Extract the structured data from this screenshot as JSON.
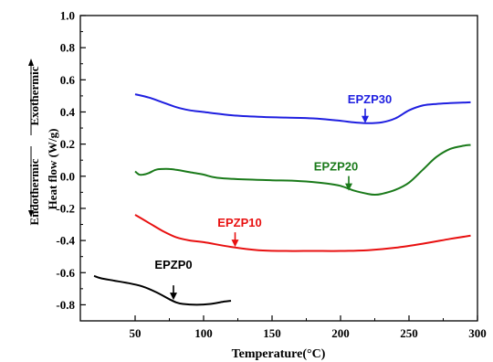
{
  "chart_data": {
    "type": "line",
    "title": "",
    "xlabel": "Temperature(°C)",
    "ylabel": "Heat flow (W/g)",
    "ylabel_exo": "Exothermic",
    "ylabel_endo": "Endothermic",
    "xlim": [
      10,
      300
    ],
    "ylim": [
      -0.9,
      1.0
    ],
    "xticks": [
      "50",
      "100",
      "150",
      "200",
      "250",
      "300"
    ],
    "xtick_values": [
      50,
      100,
      150,
      200,
      250,
      300
    ],
    "yticks": [
      "1.0",
      "0.8",
      "0.6",
      "0.4",
      "0.2",
      "0.0",
      "-0.2",
      "-0.4",
      "-0.6",
      "-0.8"
    ],
    "ytick_values": [
      1.0,
      0.8,
      0.6,
      0.4,
      0.2,
      0.0,
      -0.2,
      -0.4,
      -0.6,
      -0.8
    ],
    "grid": false,
    "legend": "none",
    "series": [
      {
        "name": "EPZP30",
        "color": "#1f1fe0",
        "x": [
          50,
          60,
          70,
          80,
          90,
          100,
          120,
          140,
          160,
          180,
          200,
          210,
          220,
          230,
          240,
          250,
          260,
          270,
          280,
          295
        ],
        "y": [
          0.51,
          0.49,
          0.46,
          0.43,
          0.41,
          0.4,
          0.38,
          0.37,
          0.365,
          0.36,
          0.345,
          0.335,
          0.33,
          0.335,
          0.36,
          0.41,
          0.44,
          0.45,
          0.455,
          0.46
        ],
        "marker_x": 218,
        "marker_y": 0.33
      },
      {
        "name": "EPZP20",
        "color": "#1a7a1a",
        "x": [
          50,
          53,
          56,
          60,
          65,
          70,
          75,
          80,
          90,
          100,
          110,
          130,
          150,
          170,
          190,
          200,
          210,
          220,
          225,
          230,
          240,
          250,
          260,
          270,
          280,
          290,
          295
        ],
        "y": [
          0.03,
          0.01,
          0.01,
          0.02,
          0.04,
          0.045,
          0.045,
          0.04,
          0.025,
          0.01,
          -0.01,
          -0.02,
          -0.025,
          -0.03,
          -0.045,
          -0.06,
          -0.09,
          -0.11,
          -0.115,
          -0.11,
          -0.085,
          -0.04,
          0.04,
          0.12,
          0.17,
          0.19,
          0.195
        ],
        "marker_x": 206,
        "marker_y": -0.09
      },
      {
        "name": "EPZP10",
        "color": "#e81010",
        "x": [
          50,
          60,
          70,
          80,
          90,
          100,
          120,
          140,
          160,
          180,
          200,
          220,
          240,
          260,
          280,
          295
        ],
        "y": [
          -0.24,
          -0.29,
          -0.34,
          -0.38,
          -0.4,
          -0.41,
          -0.44,
          -0.46,
          -0.465,
          -0.465,
          -0.465,
          -0.46,
          -0.445,
          -0.42,
          -0.39,
          -0.37
        ],
        "marker_x": 123,
        "marker_y": -0.44
      },
      {
        "name": "EPZP0",
        "color": "#000000",
        "x": [
          20,
          25,
          35,
          45,
          55,
          65,
          75,
          80,
          85,
          95,
          105,
          115,
          120
        ],
        "y": [
          -0.62,
          -0.635,
          -0.65,
          -0.665,
          -0.685,
          -0.72,
          -0.765,
          -0.785,
          -0.795,
          -0.8,
          -0.795,
          -0.78,
          -0.775
        ],
        "marker_x": 78,
        "marker_y": -0.77
      }
    ]
  }
}
